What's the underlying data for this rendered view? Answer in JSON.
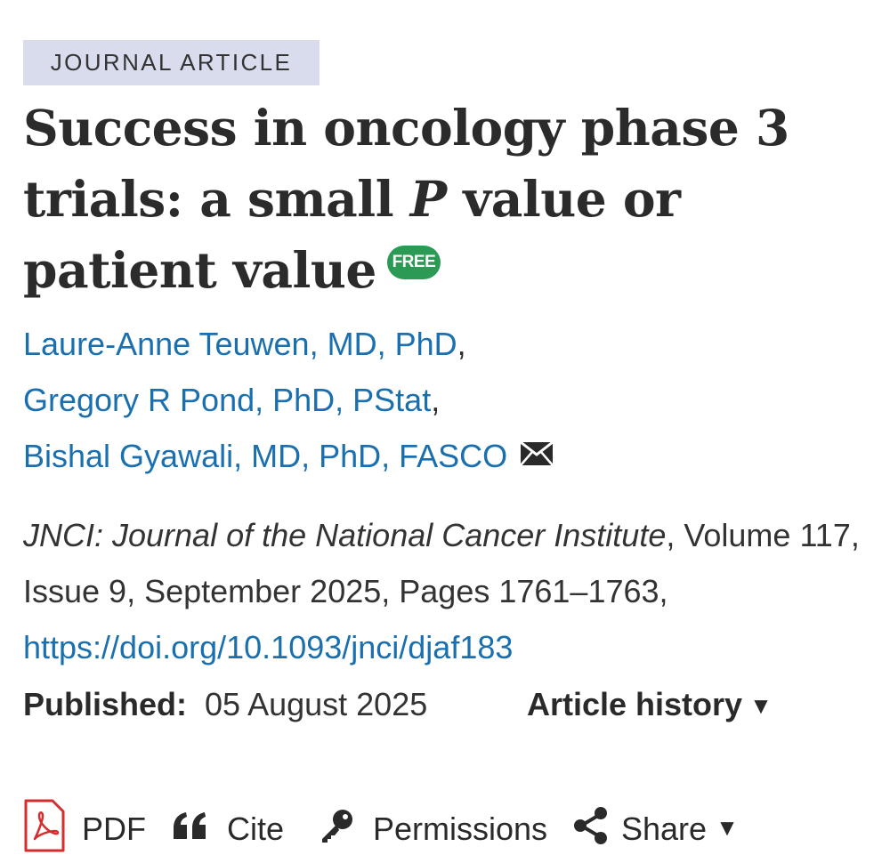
{
  "article_type": "JOURNAL ARTICLE",
  "title": {
    "part1": "Success in oncology phase 3 trials: a small ",
    "italic": "P",
    "part2": " value or patient value",
    "free_label": "FREE",
    "free_color": "#2b9a55"
  },
  "authors": [
    {
      "name": "Laure-Anne Teuwen, MD, PhD",
      "separator": ","
    },
    {
      "name": "Gregory R Pond, PhD, PStat",
      "separator": ","
    },
    {
      "name": "Bishal Gyawali, MD, PhD, FASCO",
      "separator": ""
    }
  ],
  "correspondence_icon": "envelope-icon",
  "citation": {
    "journal": "JNCI: Journal of the National Cancer Institute",
    "details": ", Volume 117, Issue 9, September 2025, Pages 1761–1763, ",
    "doi": "https://doi.org/10.1093/jnci/djaf183"
  },
  "published": {
    "label": "Published:",
    "date": "05 August 2025",
    "history_label": "Article history",
    "history_caret": "▼"
  },
  "toolbar": {
    "pdf_label": "PDF",
    "cite_label": "Cite",
    "permissions_label": "Permissions",
    "share_label": "Share",
    "share_caret": "▼",
    "pdf_color": "#d62e2e"
  },
  "colors": {
    "link": "#1a6fae",
    "badge_bg": "#d8dcec",
    "text": "#2a2a2a"
  }
}
